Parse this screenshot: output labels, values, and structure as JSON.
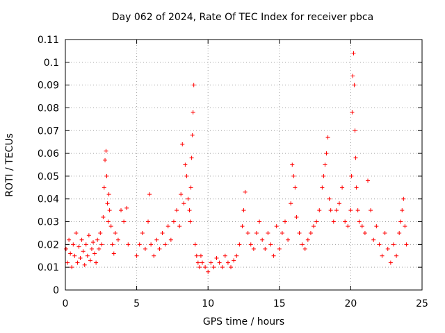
{
  "chart_data": {
    "type": "scatter",
    "title": "Day 062 of 2024, Rate Of TEC Index for receiver pbca",
    "xlabel": "GPS time / hours",
    "ylabel": "ROTI / TECUs",
    "xlim": [
      0,
      25
    ],
    "ylim": [
      0,
      0.11
    ],
    "x_ticks": [
      "0",
      "5",
      "10",
      "15",
      "20",
      "25"
    ],
    "y_ticks": [
      "0",
      "0.01",
      "0.02",
      "0.03",
      "0.04",
      "0.05",
      "0.06",
      "0.07",
      "0.08",
      "0.09",
      "0.1",
      "0.11"
    ],
    "grid": true,
    "marker": "+",
    "color": "#ff0000",
    "series": [
      {
        "x": [
          0.05,
          0.15,
          0.25,
          0.35,
          0.45,
          0.55,
          0.65,
          0.75,
          0.85,
          0.95,
          1.05,
          1.15,
          1.25,
          1.35,
          1.45,
          1.55,
          1.65,
          1.75,
          1.85,
          1.95,
          2.05,
          2.15,
          2.25,
          2.35,
          2.45,
          2.55,
          2.65,
          2.72,
          2.78,
          2.85,
          2.9,
          2.95,
          3.0,
          3.05,
          3.1,
          3.2,
          3.3,
          3.4,
          3.5,
          3.7,
          3.9,
          4.1,
          4.3,
          4.4,
          5.0,
          5.2,
          5.4,
          5.6,
          5.8,
          5.9,
          6.0,
          6.2,
          6.4,
          6.6,
          6.8,
          7.0,
          7.2,
          7.4,
          7.6,
          7.8,
          8.0,
          8.1,
          8.2,
          8.3,
          8.4,
          8.5,
          8.6,
          8.7,
          8.75,
          8.8,
          8.85,
          8.9,
          8.95,
          9.0,
          9.1,
          9.2,
          9.3,
          9.4,
          9.5,
          9.6,
          9.8,
          10.0,
          10.2,
          10.4,
          10.6,
          10.8,
          11.0,
          11.2,
          11.4,
          11.6,
          11.8,
          12.0,
          12.2,
          12.4,
          12.5,
          12.6,
          12.8,
          13.0,
          13.2,
          13.4,
          13.6,
          13.8,
          14.0,
          14.2,
          14.4,
          14.6,
          14.8,
          15.0,
          15.2,
          15.4,
          15.6,
          15.8,
          15.9,
          16.0,
          16.1,
          16.2,
          16.4,
          16.6,
          16.8,
          17.0,
          17.2,
          17.4,
          17.6,
          17.8,
          18.0,
          18.1,
          18.2,
          18.3,
          18.4,
          18.5,
          18.6,
          18.8,
          19.0,
          19.2,
          19.4,
          19.6,
          19.8,
          20.0,
          20.05,
          20.1,
          20.15,
          20.2,
          20.25,
          20.3,
          20.35,
          20.4,
          20.5,
          20.6,
          20.8,
          21.0,
          21.2,
          21.4,
          21.6,
          21.8,
          22.0,
          22.2,
          22.4,
          22.6,
          22.8,
          23.0,
          23.2,
          23.4,
          23.5,
          23.6,
          23.7,
          23.8,
          23.9
        ],
        "y": [
          0.018,
          0.012,
          0.022,
          0.016,
          0.01,
          0.02,
          0.015,
          0.025,
          0.012,
          0.019,
          0.014,
          0.022,
          0.017,
          0.011,
          0.02,
          0.015,
          0.024,
          0.013,
          0.018,
          0.021,
          0.016,
          0.012,
          0.022,
          0.018,
          0.025,
          0.02,
          0.032,
          0.045,
          0.057,
          0.061,
          0.05,
          0.038,
          0.03,
          0.042,
          0.035,
          0.028,
          0.02,
          0.016,
          0.025,
          0.022,
          0.035,
          0.03,
          0.036,
          0.02,
          0.015,
          0.02,
          0.025,
          0.018,
          0.03,
          0.042,
          0.02,
          0.015,
          0.022,
          0.018,
          0.025,
          0.02,
          0.028,
          0.022,
          0.03,
          0.035,
          0.028,
          0.042,
          0.064,
          0.038,
          0.055,
          0.05,
          0.04,
          0.035,
          0.03,
          0.045,
          0.058,
          0.068,
          0.078,
          0.09,
          0.02,
          0.015,
          0.012,
          0.01,
          0.015,
          0.012,
          0.01,
          0.008,
          0.012,
          0.01,
          0.014,
          0.012,
          0.01,
          0.015,
          0.012,
          0.01,
          0.013,
          0.015,
          0.02,
          0.028,
          0.035,
          0.043,
          0.025,
          0.02,
          0.018,
          0.025,
          0.03,
          0.022,
          0.018,
          0.025,
          0.02,
          0.015,
          0.028,
          0.018,
          0.025,
          0.03,
          0.022,
          0.038,
          0.055,
          0.05,
          0.045,
          0.032,
          0.025,
          0.02,
          0.018,
          0.022,
          0.025,
          0.028,
          0.03,
          0.035,
          0.045,
          0.05,
          0.055,
          0.06,
          0.067,
          0.04,
          0.035,
          0.03,
          0.035,
          0.038,
          0.045,
          0.03,
          0.028,
          0.035,
          0.05,
          0.078,
          0.094,
          0.104,
          0.09,
          0.07,
          0.058,
          0.045,
          0.035,
          0.03,
          0.028,
          0.025,
          0.048,
          0.035,
          0.022,
          0.028,
          0.02,
          0.015,
          0.025,
          0.018,
          0.012,
          0.02,
          0.015,
          0.025,
          0.03,
          0.035,
          0.04,
          0.028,
          0.02
        ]
      }
    ]
  }
}
